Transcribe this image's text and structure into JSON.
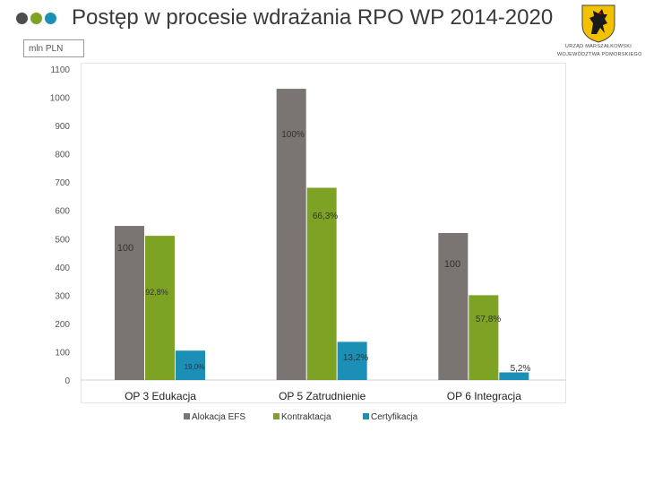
{
  "header": {
    "title": "Postęp w procesie wdrażania RPO WP 2014-2020",
    "unit": "mln PLN",
    "dot_colors": [
      "#4d4d4d",
      "#7ea324",
      "#1b8fb5"
    ]
  },
  "logo": {
    "line1": "URZĄD MARSZAŁKOWSKI",
    "line2": "WOJEWÓDZTWA POMORSKIEGO",
    "icon": "pomeranian-griffin-coat-of-arms"
  },
  "chart_data": {
    "type": "bar",
    "categories": [
      "OP 3 Edukacja",
      "OP 5 Zatrudnienie",
      "OP 6 Integracja"
    ],
    "series": [
      {
        "name": "Alokacja EFS",
        "color": "#7a7472",
        "values": [
          545,
          1030,
          520
        ],
        "labels": [
          "100",
          "100%",
          "100"
        ]
      },
      {
        "name": "Kontraktacja",
        "color": "#7ea324",
        "values": [
          510,
          680,
          300
        ],
        "labels": [
          "92,8%",
          "66,3%",
          "57,8%"
        ]
      },
      {
        "name": "Certyfikacja",
        "color": "#1b8fb5",
        "values": [
          104,
          135,
          27
        ],
        "labels": [
          "19,0%",
          "13,2%",
          "5,2%"
        ]
      }
    ],
    "yticks": [
      "0",
      "100",
      "200",
      "300",
      "400",
      "500",
      "600",
      "700",
      "800",
      "900",
      "1000",
      "1100"
    ],
    "ylim": [
      0,
      1100
    ],
    "grid": false,
    "legend": "bottom"
  }
}
